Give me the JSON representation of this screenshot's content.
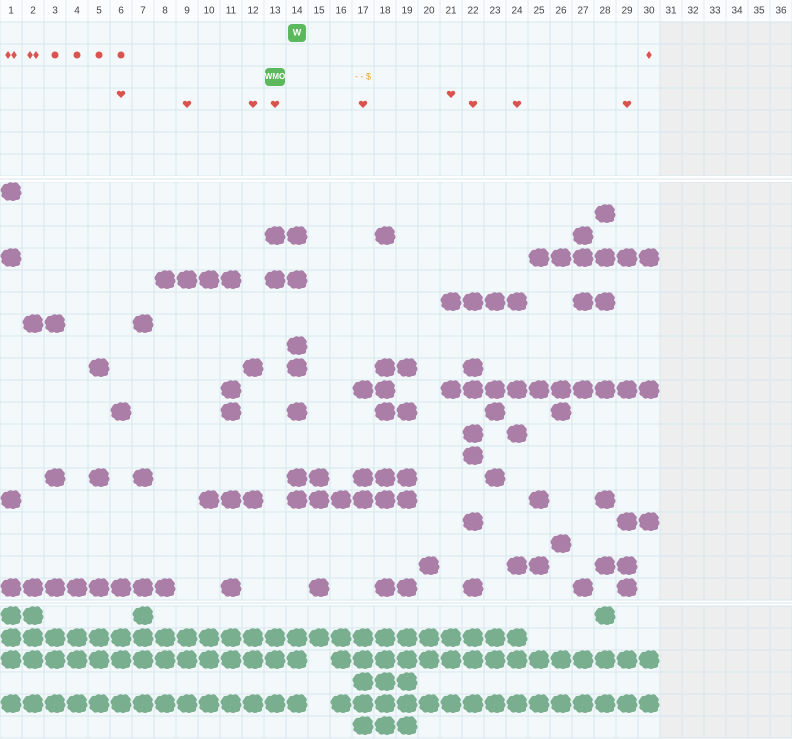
{
  "header": {
    "columns": [
      1,
      2,
      3,
      4,
      5,
      6,
      7,
      8,
      9,
      10,
      11,
      12,
      13,
      14,
      15,
      16,
      17,
      18,
      19,
      20,
      21,
      22,
      23,
      24,
      25,
      26,
      27,
      28,
      29,
      30,
      31,
      32,
      33,
      34,
      35,
      36
    ]
  },
  "top": {
    "badges": [
      {
        "label": "W",
        "col": 14,
        "row": 0
      },
      {
        "label": "WMO",
        "col": 13,
        "row": 2
      }
    ],
    "note": {
      "label": "- - $",
      "col": 17,
      "row": 2
    },
    "diamond_pairs": [
      1,
      2
    ],
    "diamonds": [
      30
    ],
    "dots": [
      3,
      4,
      5,
      6
    ],
    "hearts_high": [
      6,
      21
    ],
    "hearts_low": [
      9,
      12,
      13,
      17,
      22,
      24,
      29
    ]
  },
  "purple": {
    "rows": [
      [
        1
      ],
      [
        28
      ],
      [
        13,
        14,
        18,
        27
      ],
      [
        1,
        25,
        26,
        27,
        28,
        29,
        30
      ],
      [
        8,
        9,
        10,
        11,
        13,
        14
      ],
      [
        21,
        22,
        23,
        24,
        27,
        28
      ],
      [
        2,
        3,
        7
      ],
      [
        14
      ],
      [
        5,
        12,
        14,
        18,
        19,
        22
      ],
      [
        11,
        17,
        18,
        21,
        22,
        23,
        24,
        25,
        26,
        27,
        28,
        29,
        30
      ],
      [
        6,
        11,
        14,
        18,
        19,
        23,
        26
      ],
      [
        22,
        24
      ],
      [
        22
      ],
      [
        3,
        5,
        7,
        14,
        15,
        17,
        18,
        19,
        23
      ],
      [
        1,
        10,
        11,
        12,
        14,
        15,
        16,
        17,
        18,
        19,
        25,
        28
      ],
      [
        22,
        29,
        30
      ],
      [
        26
      ],
      [
        20,
        24,
        25,
        28,
        29
      ],
      [
        1,
        2,
        3,
        4,
        5,
        6,
        7,
        8,
        11,
        15,
        18,
        19,
        22,
        27,
        29
      ]
    ]
  },
  "green": {
    "rows": [
      [
        1,
        2,
        7,
        28
      ],
      [
        1,
        2,
        3,
        4,
        5,
        6,
        7,
        8,
        9,
        10,
        11,
        12,
        13,
        14,
        15,
        16,
        17,
        18,
        19,
        20,
        21,
        22,
        23,
        24
      ],
      [
        1,
        2,
        3,
        4,
        5,
        6,
        7,
        8,
        9,
        10,
        11,
        12,
        13,
        14,
        16,
        17,
        18,
        19,
        20,
        21,
        22,
        23,
        24,
        25,
        26,
        27,
        28,
        29,
        30
      ],
      [
        17,
        18,
        19
      ],
      [
        1,
        2,
        3,
        4,
        5,
        6,
        7,
        8,
        9,
        10,
        11,
        12,
        13,
        14,
        16,
        17,
        18,
        19,
        20,
        21,
        22,
        23,
        24,
        25,
        26,
        27,
        28,
        29,
        30
      ],
      [
        17,
        18,
        19
      ]
    ]
  }
}
